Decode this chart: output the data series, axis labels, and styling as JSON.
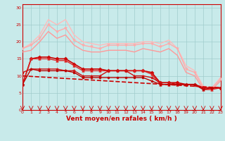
{
  "background_color": "#c8eaea",
  "grid_color": "#a0cccc",
  "xlabel": "Vent moyen/en rafales ( km/h )",
  "xlabel_color": "#cc0000",
  "x_ticks": [
    0,
    1,
    2,
    3,
    4,
    5,
    6,
    7,
    8,
    9,
    10,
    11,
    12,
    13,
    14,
    15,
    16,
    17,
    18,
    19,
    20,
    21,
    22,
    23
  ],
  "y_ticks": [
    0,
    5,
    10,
    15,
    20,
    25,
    30
  ],
  "xlim": [
    0,
    23
  ],
  "ylim": [
    0,
    31
  ],
  "lines": [
    {
      "x": [
        0,
        1,
        2,
        3,
        4,
        5,
        6,
        7,
        8,
        9,
        10,
        11,
        12,
        13,
        14,
        15,
        16,
        17,
        18,
        19,
        20,
        21,
        22,
        23
      ],
      "y": [
        18,
        19.5,
        22,
        26.5,
        25,
        26.5,
        22,
        20,
        19.5,
        19,
        19.5,
        19.5,
        19.5,
        19.5,
        20,
        20,
        19.5,
        20.5,
        18,
        13,
        11.5,
        7,
        6.5,
        9.5
      ],
      "color": "#ffbbbb",
      "linewidth": 1.0,
      "marker": null
    },
    {
      "x": [
        0,
        1,
        2,
        3,
        4,
        5,
        6,
        7,
        8,
        9,
        10,
        11,
        12,
        13,
        14,
        15,
        16,
        17,
        18,
        19,
        20,
        21,
        22,
        23
      ],
      "y": [
        18,
        19,
        21,
        25,
        23,
        24,
        20.5,
        19,
        18.5,
        18,
        19,
        19,
        19,
        19,
        19.5,
        19.5,
        18.5,
        19.5,
        18,
        12,
        11,
        6.5,
        6.5,
        9
      ],
      "color": "#ffaaaa",
      "linewidth": 1.0,
      "marker": "v",
      "markersize": 2.5
    },
    {
      "x": [
        0,
        1,
        2,
        3,
        4,
        5,
        6,
        7,
        8,
        9,
        10,
        11,
        12,
        13,
        14,
        15,
        16,
        17,
        18,
        19,
        20,
        21,
        22,
        23
      ],
      "y": [
        17,
        17.5,
        20,
        23,
        21,
        22,
        19,
        17.5,
        17,
        17,
        17.5,
        17.5,
        17.5,
        17,
        18,
        17.5,
        17,
        18,
        16,
        11,
        10,
        6,
        6,
        8.5
      ],
      "color": "#ff9999",
      "linewidth": 1.0,
      "marker": null
    },
    {
      "x": [
        0,
        1,
        2,
        3,
        4,
        5,
        6,
        7,
        8,
        9,
        10,
        11,
        12,
        13,
        14,
        15,
        16,
        17,
        18,
        19,
        20,
        21,
        22,
        23
      ],
      "y": [
        7.5,
        15,
        15.5,
        15.5,
        15,
        15,
        13.5,
        12,
        12,
        12,
        11.5,
        11.5,
        11.5,
        11.5,
        11.5,
        11,
        8,
        8,
        8,
        7.5,
        7.5,
        6.5,
        6.5,
        6.5
      ],
      "color": "#cc0000",
      "linewidth": 1.2,
      "marker": "D",
      "markersize": 2.5
    },
    {
      "x": [
        0,
        1,
        2,
        3,
        4,
        5,
        6,
        7,
        8,
        9,
        10,
        11,
        12,
        13,
        14,
        15,
        16,
        17,
        18,
        19,
        20,
        21,
        22,
        23
      ],
      "y": [
        7.5,
        15,
        15,
        15,
        14.5,
        14.5,
        13,
        11.5,
        11.5,
        11.5,
        11.5,
        11.5,
        11.5,
        11.5,
        11.5,
        10.5,
        7.5,
        7.5,
        7.5,
        7.5,
        7.5,
        6,
        6,
        6.5
      ],
      "color": "#dd2222",
      "linewidth": 1.0,
      "marker": "^",
      "markersize": 2.5
    },
    {
      "x": [
        0,
        1,
        2,
        3,
        4,
        5,
        6,
        7,
        8,
        9,
        10,
        11,
        12,
        13,
        14,
        15,
        16,
        17,
        18,
        19,
        20,
        21,
        22,
        23
      ],
      "y": [
        11,
        12,
        12,
        12,
        12,
        11.5,
        11.5,
        10,
        10,
        10,
        11.5,
        11.5,
        11.5,
        10,
        10,
        9.5,
        8,
        8,
        7.5,
        7.5,
        7.5,
        6.5,
        6.5,
        6.5
      ],
      "color": "#cc1111",
      "linewidth": 1.0,
      "marker": "*",
      "markersize": 3.0
    },
    {
      "x": [
        0,
        1,
        2,
        3,
        4,
        5,
        6,
        7,
        8,
        9,
        10,
        11,
        12,
        13,
        14,
        15,
        16,
        17,
        18,
        19,
        20,
        21,
        22,
        23
      ],
      "y": [
        7.5,
        12,
        11.5,
        11.5,
        11.5,
        11.5,
        11,
        9.5,
        9.5,
        9.5,
        9.5,
        9.5,
        9.5,
        9.5,
        9.5,
        8.5,
        7.5,
        7.5,
        7.5,
        7.5,
        7.5,
        6,
        6.5,
        6.5
      ],
      "color": "#bb0000",
      "linewidth": 1.0,
      "marker": "o",
      "markersize": 2.0
    },
    {
      "x": [
        0,
        23
      ],
      "y": [
        10,
        6.5
      ],
      "color": "#cc0000",
      "linewidth": 1.2,
      "marker": null,
      "linestyle": "--"
    }
  ],
  "tick_color": "#cc0000",
  "tick_fontsize": 4.5,
  "xlabel_fontsize": 6.5
}
